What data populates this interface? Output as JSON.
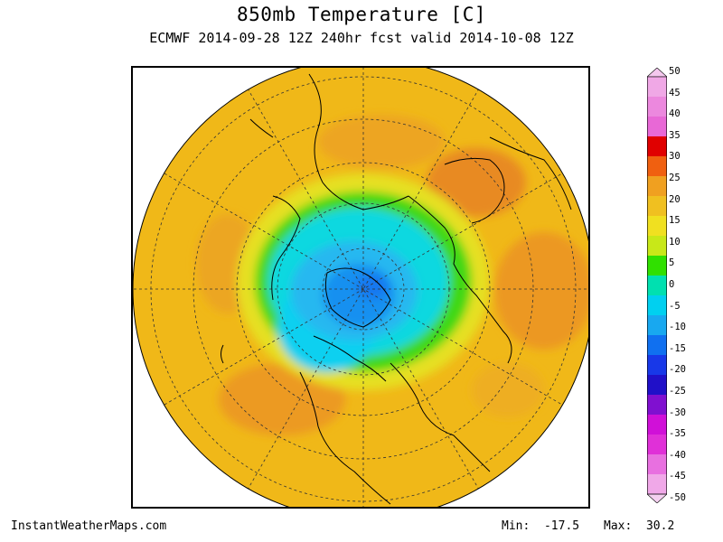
{
  "header": {
    "title": "850mb Temperature [C]",
    "subtitle": "ECMWF 2014-09-28 12Z 240hr fcst valid 2014-10-08 12Z"
  },
  "map": {
    "projection": "north-polar-stereographic",
    "field": "850mb temperature",
    "units": "C"
  },
  "colorbar": {
    "labels": [
      "50",
      "45",
      "40",
      "35",
      "30",
      "25",
      "20",
      "15",
      "10",
      "5",
      "0",
      "-5",
      "-10",
      "-15",
      "-20",
      "-25",
      "-30",
      "-35",
      "-40",
      "-45",
      "-50"
    ],
    "colors": [
      "#f4c8ee",
      "#f0a8e6",
      "#ec88de",
      "#e868d6",
      "#e00000",
      "#f06010",
      "#f0a020",
      "#f0c020",
      "#f0e020",
      "#c8e818",
      "#30e000",
      "#00e0b0",
      "#00d0f0",
      "#18a8f0",
      "#1070f0",
      "#1838e8",
      "#2010c8",
      "#8010d0",
      "#d010d8",
      "#e030d8",
      "#e870e0",
      "#f0a8e8",
      "#f4d0f0"
    ],
    "min_label": "-50",
    "max_label": "50"
  },
  "footer": {
    "site": "InstantWeatherMaps.com",
    "min_text": "Min:  -17.5",
    "max_text": "Max:  30.2"
  }
}
